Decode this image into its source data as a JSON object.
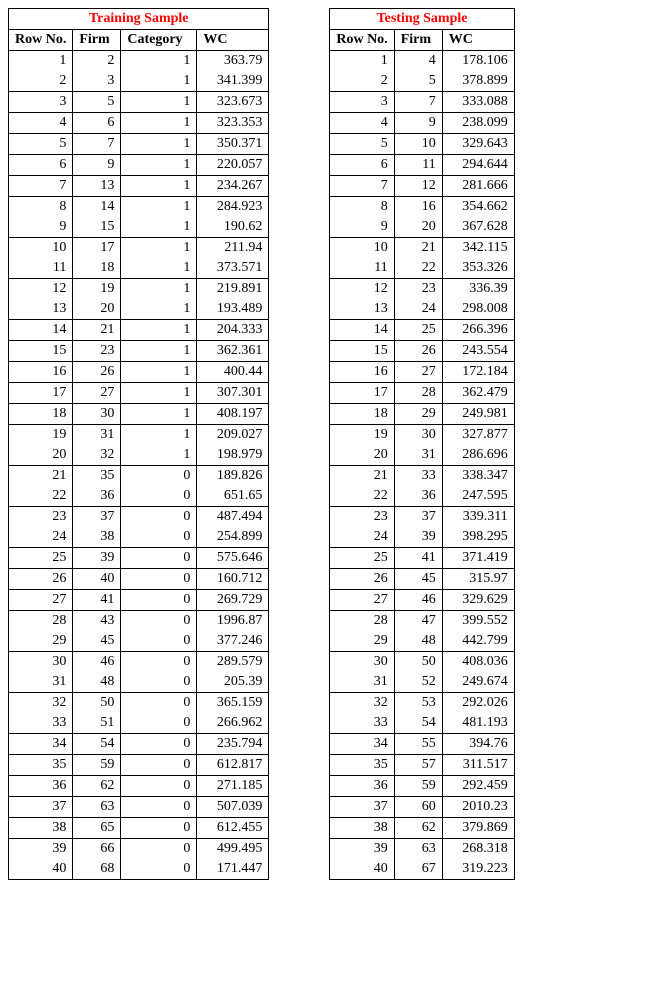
{
  "training": {
    "title": "Training Sample",
    "title_color": "#ff0000",
    "columns": [
      "Row No.",
      "Firm",
      "Category",
      "WC"
    ],
    "rows": [
      [
        1,
        2,
        1,
        "363.79"
      ],
      [
        2,
        3,
        1,
        "341.399"
      ],
      [
        3,
        5,
        1,
        "323.673"
      ],
      [
        4,
        6,
        1,
        "323.353"
      ],
      [
        5,
        7,
        1,
        "350.371"
      ],
      [
        6,
        9,
        1,
        "220.057"
      ],
      [
        7,
        13,
        1,
        "234.267"
      ],
      [
        8,
        14,
        1,
        "284.923"
      ],
      [
        9,
        15,
        1,
        "190.62"
      ],
      [
        10,
        17,
        1,
        "211.94"
      ],
      [
        11,
        18,
        1,
        "373.571"
      ],
      [
        12,
        19,
        1,
        "219.891"
      ],
      [
        13,
        20,
        1,
        "193.489"
      ],
      [
        14,
        21,
        1,
        "204.333"
      ],
      [
        15,
        23,
        1,
        "362.361"
      ],
      [
        16,
        26,
        1,
        "400.44"
      ],
      [
        17,
        27,
        1,
        "307.301"
      ],
      [
        18,
        30,
        1,
        "408.197"
      ],
      [
        19,
        31,
        1,
        "209.027"
      ],
      [
        20,
        32,
        1,
        "198.979"
      ],
      [
        21,
        35,
        0,
        "189.826"
      ],
      [
        22,
        36,
        0,
        "651.65"
      ],
      [
        23,
        37,
        0,
        "487.494"
      ],
      [
        24,
        38,
        0,
        "254.899"
      ],
      [
        25,
        39,
        0,
        "575.646"
      ],
      [
        26,
        40,
        0,
        "160.712"
      ],
      [
        27,
        41,
        0,
        "269.729"
      ],
      [
        28,
        43,
        0,
        "1996.87"
      ],
      [
        29,
        45,
        0,
        "377.246"
      ],
      [
        30,
        46,
        0,
        "289.579"
      ],
      [
        31,
        48,
        0,
        "205.39"
      ],
      [
        32,
        50,
        0,
        "365.159"
      ],
      [
        33,
        51,
        0,
        "266.962"
      ],
      [
        34,
        54,
        0,
        "235.794"
      ],
      [
        35,
        59,
        0,
        "612.817"
      ],
      [
        36,
        62,
        0,
        "271.185"
      ],
      [
        37,
        63,
        0,
        "507.039"
      ],
      [
        38,
        65,
        0,
        "612.455"
      ],
      [
        39,
        66,
        0,
        "499.495"
      ],
      [
        40,
        68,
        0,
        "171.447"
      ]
    ],
    "merged_pairs": [
      [
        1,
        2
      ],
      [
        8,
        9
      ],
      [
        10,
        11
      ],
      [
        12,
        13
      ],
      [
        19,
        20
      ],
      [
        21,
        22
      ],
      [
        23,
        24
      ],
      [
        28,
        29
      ],
      [
        30,
        31
      ],
      [
        32,
        33
      ],
      [
        39,
        40
      ]
    ]
  },
  "testing": {
    "title": "Testing Sample",
    "title_color": "#ff0000",
    "columns": [
      "Row No.",
      "Firm",
      "WC"
    ],
    "rows": [
      [
        1,
        4,
        "178.106"
      ],
      [
        2,
        5,
        "378.899"
      ],
      [
        3,
        7,
        "333.088"
      ],
      [
        4,
        9,
        "238.099"
      ],
      [
        5,
        10,
        "329.643"
      ],
      [
        6,
        11,
        "294.644"
      ],
      [
        7,
        12,
        "281.666"
      ],
      [
        8,
        16,
        "354.662"
      ],
      [
        9,
        20,
        "367.628"
      ],
      [
        10,
        21,
        "342.115"
      ],
      [
        11,
        22,
        "353.326"
      ],
      [
        12,
        23,
        "336.39"
      ],
      [
        13,
        24,
        "298.008"
      ],
      [
        14,
        25,
        "266.396"
      ],
      [
        15,
        26,
        "243.554"
      ],
      [
        16,
        27,
        "172.184"
      ],
      [
        17,
        28,
        "362.479"
      ],
      [
        18,
        29,
        "249.981"
      ],
      [
        19,
        30,
        "327.877"
      ],
      [
        20,
        31,
        "286.696"
      ],
      [
        21,
        33,
        "338.347"
      ],
      [
        22,
        36,
        "247.595"
      ],
      [
        23,
        37,
        "339.311"
      ],
      [
        24,
        39,
        "398.295"
      ],
      [
        25,
        41,
        "371.419"
      ],
      [
        26,
        45,
        "315.97"
      ],
      [
        27,
        46,
        "329.629"
      ],
      [
        28,
        47,
        "399.552"
      ],
      [
        29,
        48,
        "442.799"
      ],
      [
        30,
        50,
        "408.036"
      ],
      [
        31,
        52,
        "249.674"
      ],
      [
        32,
        53,
        "292.026"
      ],
      [
        33,
        54,
        "481.193"
      ],
      [
        34,
        55,
        "394.76"
      ],
      [
        35,
        57,
        "311.517"
      ],
      [
        36,
        59,
        "292.459"
      ],
      [
        37,
        60,
        "2010.23"
      ],
      [
        38,
        62,
        "379.869"
      ],
      [
        39,
        63,
        "268.318"
      ],
      [
        40,
        67,
        "319.223"
      ]
    ],
    "merged_pairs": [
      [
        1,
        2
      ],
      [
        8,
        9
      ],
      [
        10,
        11
      ],
      [
        12,
        13
      ],
      [
        19,
        20
      ],
      [
        21,
        22
      ],
      [
        23,
        24
      ],
      [
        28,
        29
      ],
      [
        30,
        31
      ],
      [
        32,
        33
      ],
      [
        39,
        40
      ]
    ]
  },
  "style": {
    "font_family": "Times New Roman",
    "font_size_pt": 11,
    "border_color": "#000000",
    "background_color": "#ffffff",
    "text_color": "#000000"
  }
}
